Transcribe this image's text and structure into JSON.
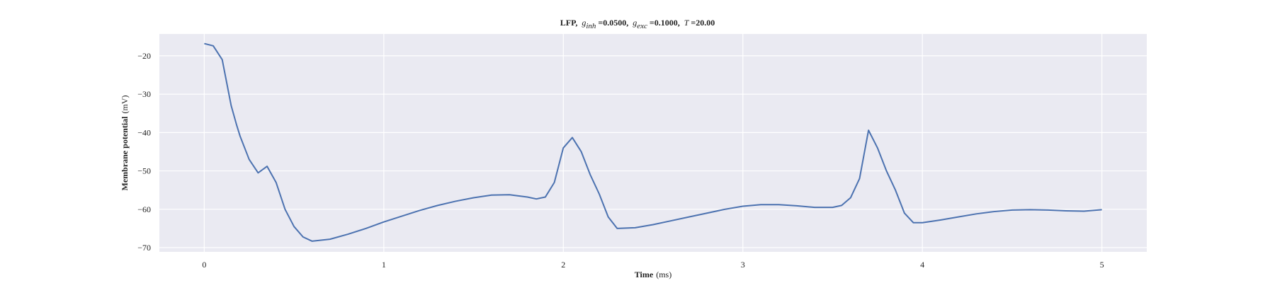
{
  "chart_data": {
    "type": "line",
    "title": {
      "label": "LFP,",
      "params": [
        {
          "symbol": "g",
          "subscript": "inh",
          "value": "=0.0500,"
        },
        {
          "symbol": "g",
          "subscript": "exc",
          "value": "=0.1000,"
        },
        {
          "symbol": "T",
          "value": "=20.00"
        }
      ]
    },
    "xlabel": {
      "name": "Time",
      "unit": "(ms)"
    },
    "ylabel": {
      "name": "Membrane potential",
      "unit": "(mV)"
    },
    "x": [
      0,
      0.05,
      0.1,
      0.15,
      0.18,
      0.2,
      0.25,
      0.3,
      0.35,
      0.4,
      0.45,
      0.5,
      0.55,
      0.6,
      0.7,
      0.8,
      0.9,
      1.0,
      1.1,
      1.2,
      1.3,
      1.4,
      1.5,
      1.6,
      1.7,
      1.8,
      1.85,
      1.9,
      1.95,
      2.0,
      2.05,
      2.1,
      2.15,
      2.2,
      2.25,
      2.3,
      2.4,
      2.5,
      2.6,
      2.7,
      2.8,
      2.9,
      3.0,
      3.1,
      3.2,
      3.3,
      3.4,
      3.5,
      3.55,
      3.6,
      3.65,
      3.7,
      3.75,
      3.8,
      3.85,
      3.9,
      3.95,
      4.0,
      4.1,
      4.2,
      4.3,
      4.4,
      4.5,
      4.6,
      4.7,
      4.8,
      4.9,
      5.0
    ],
    "series": [
      {
        "name": "LFP",
        "color": "#4c72b0",
        "values": [
          -16.8,
          -17.4,
          -21,
          -33,
          -38,
          -41,
          -47,
          -50.5,
          -48.8,
          -53,
          -60,
          -64.5,
          -67.2,
          -68.3,
          -67.8,
          -66.5,
          -65,
          -63.3,
          -61.8,
          -60.3,
          -59,
          -57.9,
          -57,
          -56.3,
          -56.2,
          -56.8,
          -57.3,
          -56.8,
          -53,
          -44,
          -41.3,
          -45,
          -51,
          -56,
          -62,
          -65,
          -64.8,
          -64,
          -63,
          -62,
          -61,
          -60,
          -59.2,
          -58.8,
          -58.8,
          -59.1,
          -59.5,
          -59.5,
          -59,
          -57,
          -52,
          -39.4,
          -44,
          -50,
          -55,
          -61,
          -63.5,
          -63.5,
          -62.8,
          -62,
          -61.2,
          -60.6,
          -60.2,
          -60.1,
          -60.2,
          -60.4,
          -60.5,
          -60.1
        ]
      }
    ],
    "xlim": [
      -0.25,
      5.25
    ],
    "ylim": [
      -71.1,
      -14.3
    ],
    "xticks": [
      0,
      1,
      2,
      3,
      4,
      5
    ],
    "yticks": [
      {
        "value": -70,
        "label": "−70"
      },
      {
        "value": -60,
        "label": "−60"
      },
      {
        "value": -50,
        "label": "−50"
      },
      {
        "value": -40,
        "label": "−40"
      },
      {
        "value": -30,
        "label": "−30"
      },
      {
        "value": -20,
        "label": "−20"
      }
    ],
    "grid": true,
    "background": "#eaeaf2"
  }
}
